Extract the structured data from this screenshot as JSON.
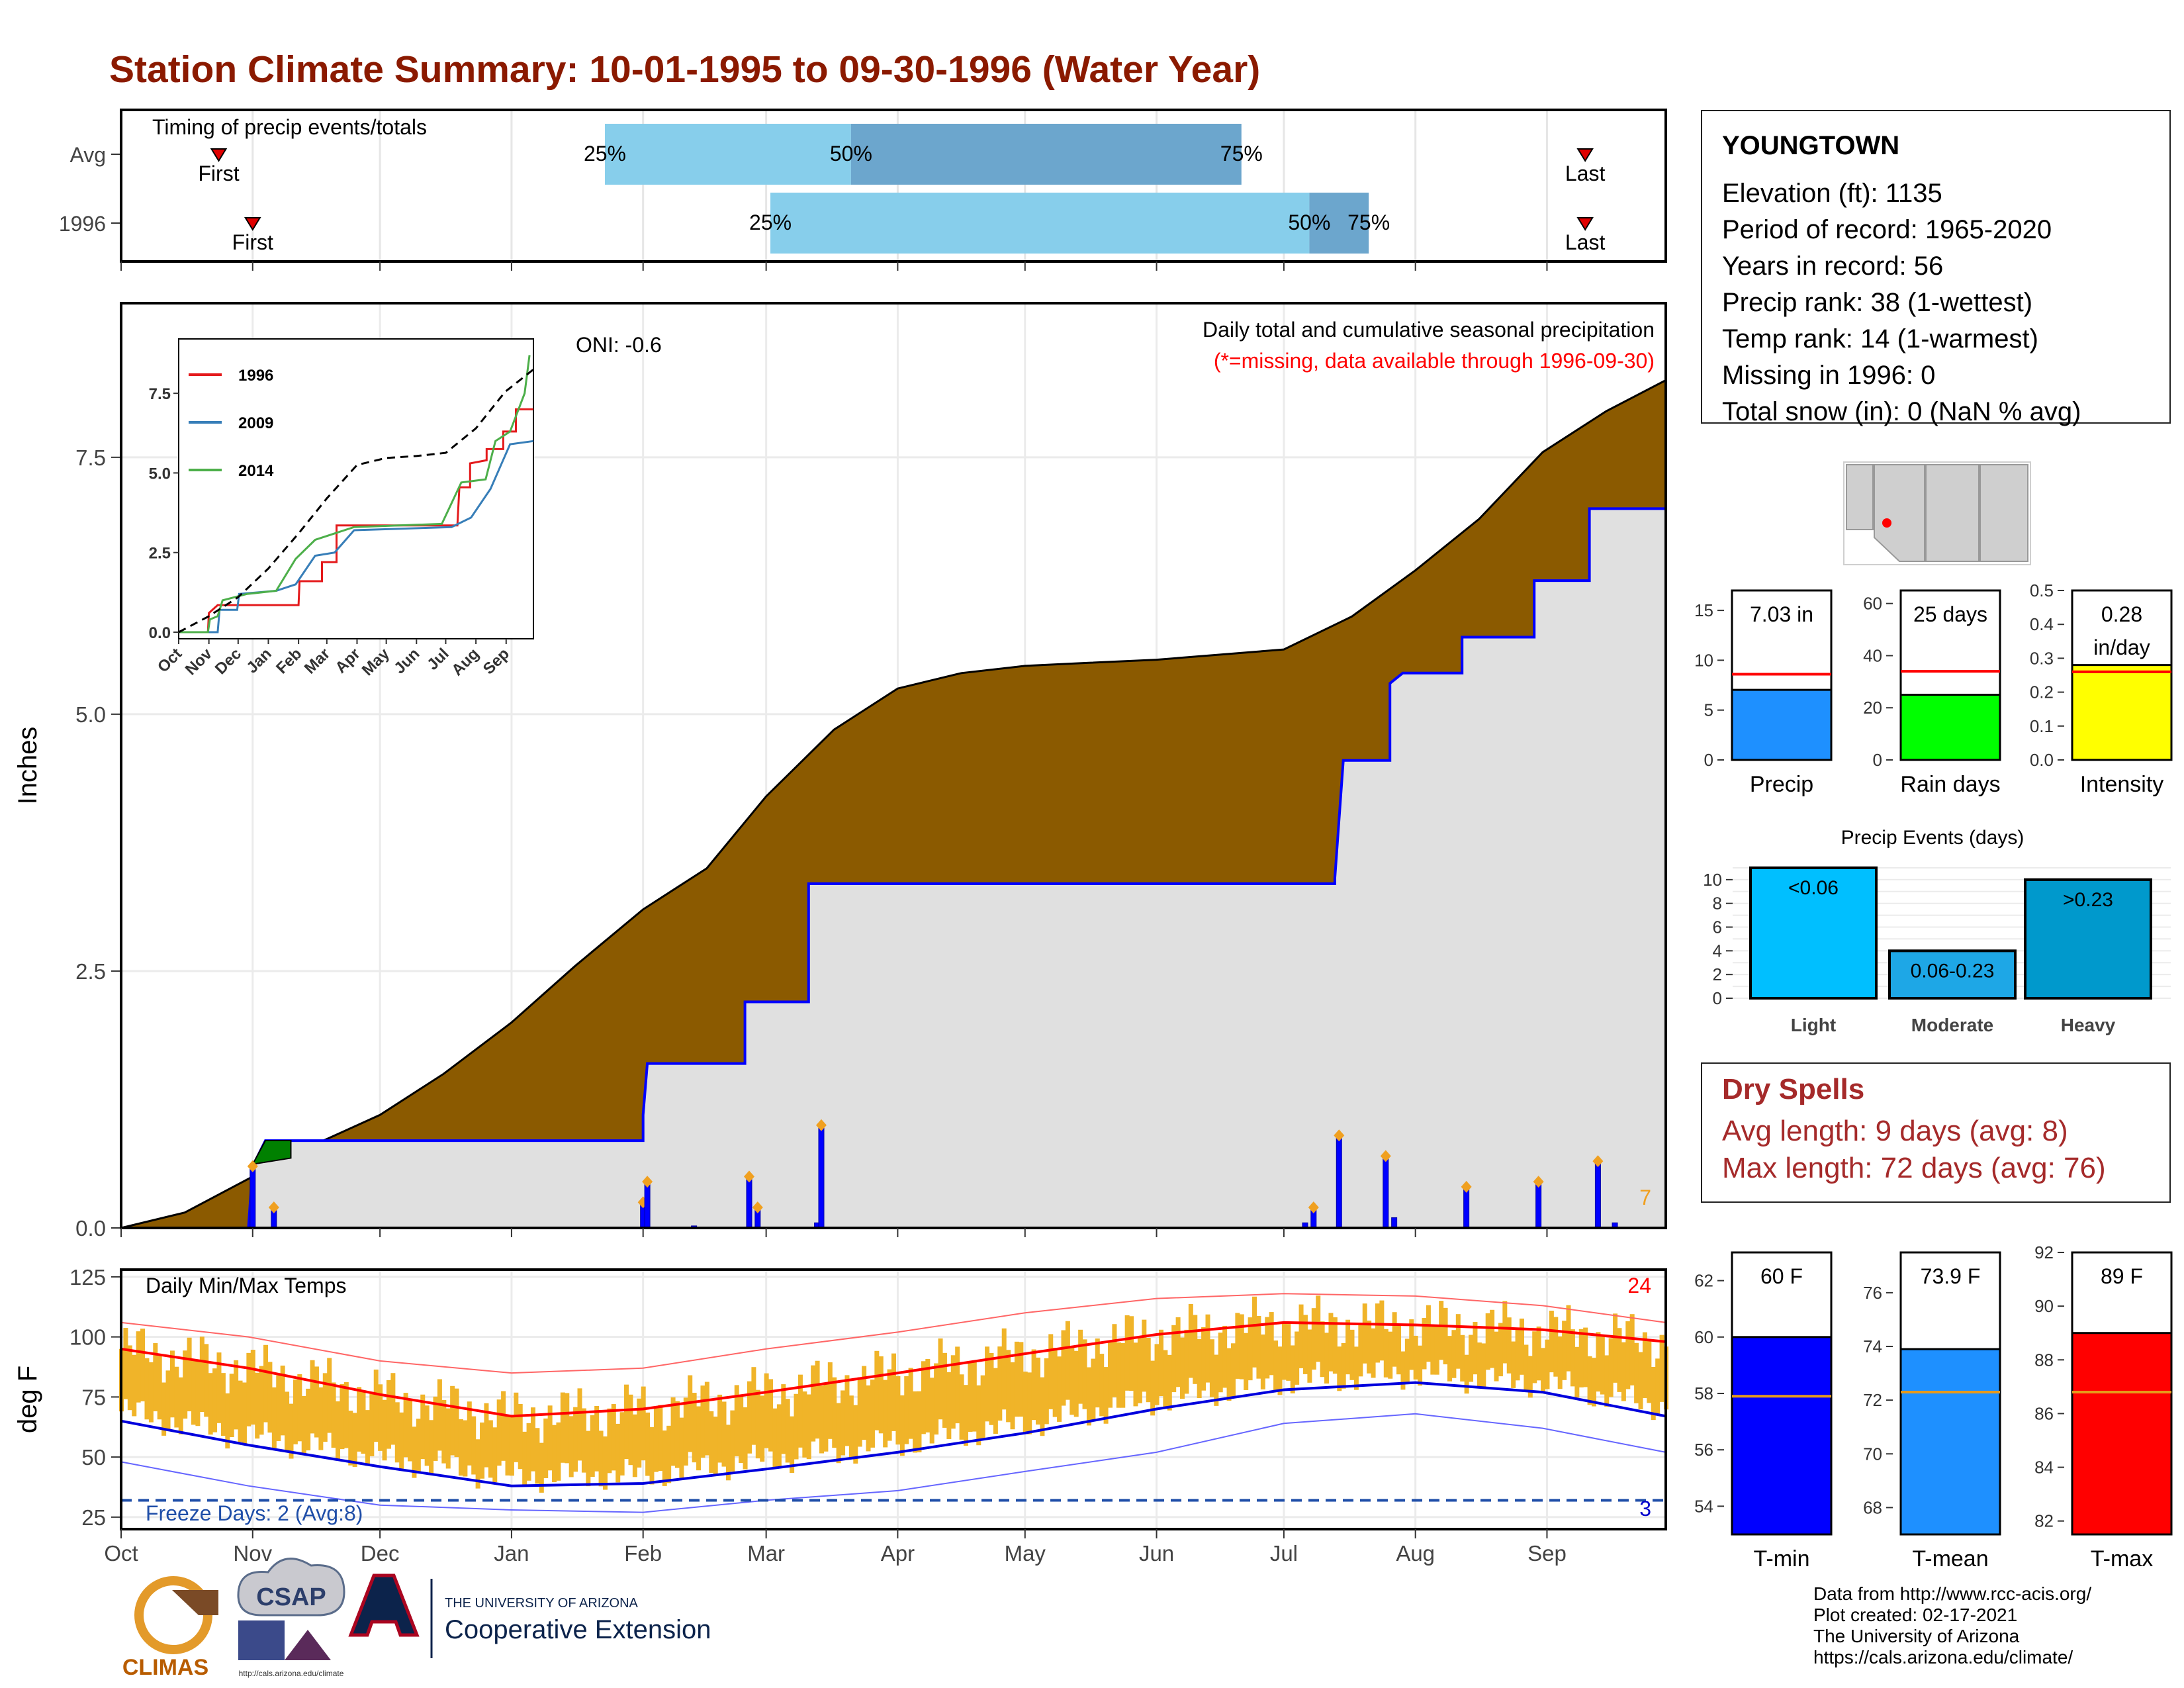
{
  "title": "Station Climate Summary: 10-01-1995 to 09-30-1996 (Water Year)",
  "station": {
    "name": "YOUNGTOWN",
    "lines": [
      "Elevation (ft): 1135",
      "Period of record: 1965-2020",
      "Years in record: 56",
      "Precip rank: 38 (1-wettest)",
      "Temp rank: 14 (1-warmest)",
      "Missing in 1996: 0",
      "Total snow (in): 0 (NaN % avg)"
    ]
  },
  "dry_spells": {
    "heading": "Dry Spells",
    "avg": "Avg length: 9 days (avg: 8)",
    "max": "Max length: 72 days (avg: 76)"
  },
  "credits": [
    "Data from http://www.rcc-acis.org/",
    "Plot created: 02-17-2021",
    "The University of Arizona",
    "https://cals.arizona.edu/climate/"
  ],
  "logos": {
    "climas": "CLIMAS",
    "csap": "CSAP",
    "csap_url": "http://cals.arizona.edu/climate",
    "ua_top": "THE UNIVERSITY OF ARIZONA",
    "ua_main": "Cooperative Extension"
  },
  "months": [
    "Oct",
    "Nov",
    "Dec",
    "Jan",
    "Feb",
    "Mar",
    "Apr",
    "May",
    "Jun",
    "Jul",
    "Aug",
    "Sep"
  ],
  "colors": {
    "brown_fill": "#8b5a00",
    "grey_fill": "#e0e0e0",
    "blue_line": "#0000ff",
    "light_bar": "#87ceeb",
    "dark_bar": "#6ca6cd",
    "gold": "#f0b429",
    "red": "#ff0000",
    "title": "#8b1a00"
  },
  "chart_data": [
    {
      "type": "bar",
      "panel": "timing",
      "title": "Timing of precip events/totals",
      "rows": [
        {
          "label": "Avg",
          "first_day": 23,
          "p25": 114,
          "p50": 172,
          "p75": 264,
          "last_day": 345
        },
        {
          "label": "1996",
          "first_day": 31,
          "p25": 153,
          "p50": 280,
          "p75": 294,
          "last_day": 345
        }
      ],
      "marker_labels": {
        "first": "First",
        "last": "Last",
        "p25": "25%",
        "p50": "50%",
        "p75": "75%"
      }
    },
    {
      "type": "area",
      "panel": "precip",
      "title": "Daily total and cumulative seasonal precipitation",
      "subtitle": "(*=missing, data available through 1996-09-30)",
      "ylabel": "Inches",
      "ylim": [
        0,
        9
      ],
      "yticks": [
        0,
        2.5,
        5,
        7.5
      ],
      "ytick_labels": [
        "0.0",
        "2.5",
        "5.0",
        "7.5"
      ],
      "oni": "ONI: -0.6",
      "corner_count": "7",
      "avg_cumulative": [
        [
          0,
          0
        ],
        [
          15,
          0.15
        ],
        [
          31,
          0.5
        ],
        [
          45,
          0.8
        ],
        [
          61,
          1.1
        ],
        [
          76,
          1.5
        ],
        [
          92,
          2.0
        ],
        [
          107,
          2.55
        ],
        [
          123,
          3.1
        ],
        [
          138,
          3.5
        ],
        [
          152,
          4.2
        ],
        [
          168,
          4.85
        ],
        [
          183,
          5.25
        ],
        [
          198,
          5.4
        ],
        [
          213,
          5.47
        ],
        [
          228,
          5.5
        ],
        [
          244,
          5.53
        ],
        [
          259,
          5.58
        ],
        [
          274,
          5.63
        ],
        [
          290,
          5.95
        ],
        [
          305,
          6.4
        ],
        [
          320,
          6.9
        ],
        [
          335,
          7.55
        ],
        [
          350,
          7.95
        ],
        [
          364,
          8.25
        ]
      ],
      "cumulative_1996": [
        [
          0,
          0
        ],
        [
          30,
          0
        ],
        [
          31,
          0.6
        ],
        [
          34,
          0.85
        ],
        [
          40,
          0.85
        ],
        [
          123,
          0.85
        ],
        [
          123,
          1.1
        ],
        [
          124,
          1.6
        ],
        [
          147,
          1.6
        ],
        [
          147,
          2.2
        ],
        [
          162,
          2.2
        ],
        [
          162,
          3.35
        ],
        [
          242,
          3.35
        ],
        [
          286,
          3.35
        ],
        [
          286,
          3.4
        ],
        [
          288,
          4.55
        ],
        [
          299,
          4.55
        ],
        [
          299,
          5.3
        ],
        [
          302,
          5.4
        ],
        [
          316,
          5.4
        ],
        [
          316,
          5.75
        ],
        [
          333,
          5.75
        ],
        [
          333,
          6.3
        ],
        [
          346,
          6.3
        ],
        [
          346,
          7.0
        ],
        [
          364,
          7.0
        ]
      ],
      "daily_bars": [
        [
          31,
          0.6
        ],
        [
          36,
          0.2
        ],
        [
          123,
          0.25
        ],
        [
          124,
          0.45
        ],
        [
          135,
          0.02
        ],
        [
          148,
          0.5
        ],
        [
          150,
          0.2
        ],
        [
          164,
          0.05
        ],
        [
          165,
          1.0
        ],
        [
          279,
          0.05
        ],
        [
          281,
          0.2
        ],
        [
          287,
          0.9
        ],
        [
          298,
          0.7
        ],
        [
          300,
          0.1
        ],
        [
          317,
          0.4
        ],
        [
          334,
          0.45
        ],
        [
          348,
          0.65
        ],
        [
          352,
          0.05
        ]
      ],
      "inset": {
        "type": "line",
        "yticks": [
          "0.0",
          "2.5",
          "5.0",
          "7.5"
        ],
        "xticks": [
          "Oct",
          "Nov",
          "Dec",
          "Jan",
          "Feb",
          "Mar",
          "Apr",
          "May",
          "Jun",
          "Jul",
          "Aug",
          "Sep"
        ],
        "series": [
          {
            "name": "1996",
            "color": "#e41a1c",
            "values": [
              [
                0,
                0
              ],
              [
                30,
                0
              ],
              [
                31,
                0.6
              ],
              [
                40,
                0.85
              ],
              [
                123,
                0.85
              ],
              [
                124,
                1.6
              ],
              [
                147,
                1.6
              ],
              [
                147,
                2.2
              ],
              [
                162,
                2.2
              ],
              [
                162,
                3.35
              ],
              [
                286,
                3.35
              ],
              [
                288,
                4.55
              ],
              [
                299,
                4.55
              ],
              [
                299,
                5.3
              ],
              [
                316,
                5.4
              ],
              [
                316,
                5.75
              ],
              [
                333,
                5.75
              ],
              [
                333,
                6.3
              ],
              [
                346,
                6.3
              ],
              [
                346,
                7.0
              ],
              [
                364,
                7.0
              ]
            ]
          },
          {
            "name": "2009",
            "color": "#377eb8",
            "values": [
              [
                0,
                0
              ],
              [
                40,
                0
              ],
              [
                42,
                0.7
              ],
              [
                60,
                0.7
              ],
              [
                62,
                1.2
              ],
              [
                100,
                1.3
              ],
              [
                120,
                1.5
              ],
              [
                140,
                2.4
              ],
              [
                160,
                2.5
              ],
              [
                180,
                3.2
              ],
              [
                280,
                3.3
              ],
              [
                300,
                3.6
              ],
              [
                320,
                4.5
              ],
              [
                340,
                5.9
              ],
              [
                364,
                6.0
              ]
            ]
          },
          {
            "name": "2014",
            "color": "#4daf4a",
            "values": [
              [
                0,
                0
              ],
              [
                30,
                0
              ],
              [
                32,
                0.4
              ],
              [
                40,
                0.5
              ],
              [
                45,
                1.0
              ],
              [
                70,
                1.2
              ],
              [
                100,
                1.3
              ],
              [
                120,
                2.3
              ],
              [
                140,
                2.9
              ],
              [
                180,
                3.3
              ],
              [
                270,
                3.4
              ],
              [
                290,
                4.7
              ],
              [
                315,
                4.8
              ],
              [
                325,
                6.0
              ],
              [
                340,
                6.3
              ],
              [
                355,
                7.5
              ],
              [
                360,
                8.7
              ]
            ]
          },
          {
            "name": "",
            "color": "#000000",
            "dashed": true,
            "values": [
              [
                0,
                0
              ],
              [
                31,
                0.5
              ],
              [
                61,
                1.1
              ],
              [
                92,
                2.0
              ],
              [
                123,
                3.1
              ],
              [
                152,
                4.2
              ],
              [
                183,
                5.25
              ],
              [
                213,
                5.47
              ],
              [
                244,
                5.53
              ],
              [
                274,
                5.63
              ],
              [
                305,
                6.4
              ],
              [
                335,
                7.55
              ],
              [
                364,
                8.25
              ]
            ]
          }
        ]
      }
    },
    {
      "type": "line",
      "panel": "temps",
      "title": "Daily Min/Max Temps",
      "ylabel": "deg F",
      "ylim": [
        20,
        128
      ],
      "yticks": [
        25,
        50,
        75,
        100,
        125
      ],
      "freeze_label": "Freeze Days: 2 (Avg:8)",
      "freeze_line": 32,
      "max_count": "24",
      "min_count": "3",
      "avg_max": [
        [
          0,
          95
        ],
        [
          30,
          87
        ],
        [
          61,
          76
        ],
        [
          92,
          67
        ],
        [
          123,
          70
        ],
        [
          152,
          77
        ],
        [
          183,
          85
        ],
        [
          213,
          93
        ],
        [
          244,
          101
        ],
        [
          274,
          106
        ],
        [
          305,
          105
        ],
        [
          335,
          103
        ],
        [
          364,
          98
        ]
      ],
      "avg_min": [
        [
          0,
          65
        ],
        [
          30,
          55
        ],
        [
          61,
          46
        ],
        [
          92,
          38
        ],
        [
          123,
          39
        ],
        [
          152,
          45
        ],
        [
          183,
          52
        ],
        [
          213,
          60
        ],
        [
          244,
          70
        ],
        [
          274,
          78
        ],
        [
          305,
          81
        ],
        [
          335,
          77
        ],
        [
          364,
          67
        ]
      ],
      "record_max": [
        [
          0,
          106
        ],
        [
          30,
          100
        ],
        [
          61,
          90
        ],
        [
          92,
          85
        ],
        [
          123,
          87
        ],
        [
          152,
          95
        ],
        [
          183,
          102
        ],
        [
          213,
          110
        ],
        [
          244,
          116
        ],
        [
          274,
          118
        ],
        [
          305,
          117
        ],
        [
          335,
          113
        ],
        [
          364,
          106
        ]
      ],
      "record_min": [
        [
          0,
          48
        ],
        [
          30,
          38
        ],
        [
          61,
          30
        ],
        [
          92,
          28
        ],
        [
          123,
          27
        ],
        [
          152,
          32
        ],
        [
          183,
          36
        ],
        [
          213,
          44
        ],
        [
          244,
          52
        ],
        [
          274,
          64
        ],
        [
          305,
          68
        ],
        [
          335,
          62
        ],
        [
          364,
          52
        ]
      ]
    },
    {
      "type": "bar",
      "panel": "totals",
      "categories": [
        "Precip",
        "Rain days",
        "Intensity"
      ],
      "labels": [
        "7.03 in",
        "25 days",
        "0.28 in/day"
      ],
      "values": [
        7.03,
        25,
        0.28
      ],
      "averages": [
        8.6,
        34,
        0.26
      ],
      "ylims": [
        [
          0,
          17
        ],
        [
          0,
          65
        ],
        [
          0,
          0.5
        ]
      ],
      "yticks": [
        [
          "0",
          "5",
          "10",
          "15"
        ],
        [
          "0",
          "20",
          "40",
          "60"
        ],
        [
          "0.0",
          "0.1",
          "0.2",
          "0.3",
          "0.4",
          "0.5"
        ]
      ],
      "colors": [
        "#1e90ff",
        "#00ff00",
        "#ffff00"
      ]
    },
    {
      "type": "bar",
      "panel": "events",
      "title": "Precip Events (days)",
      "categories": [
        "Light",
        "Moderate",
        "Heavy"
      ],
      "labels": [
        "<0.06",
        "0.06-0.23",
        ">0.23"
      ],
      "values": [
        11,
        4,
        10
      ],
      "ylim": [
        0,
        11.5
      ],
      "yticks": [
        "0",
        "2",
        "4",
        "6",
        "8",
        "10"
      ],
      "colors": [
        "#00bfff",
        "#1ea7e6",
        "#0099cc"
      ]
    },
    {
      "type": "bar",
      "panel": "temp_summary",
      "categories": [
        "T-min",
        "T-mean",
        "T-max"
      ],
      "labels": [
        "60 F",
        "73.9 F",
        "89 F"
      ],
      "values": [
        60,
        73.9,
        89
      ],
      "averages": [
        57.9,
        72.3,
        86.8
      ],
      "ylims": [
        [
          53,
          63
        ],
        [
          67,
          77.5
        ],
        [
          81.5,
          92
        ]
      ],
      "yticks": [
        [
          "54",
          "56",
          "58",
          "60",
          "62"
        ],
        [
          "68",
          "70",
          "72",
          "74",
          "76"
        ],
        [
          "82",
          "84",
          "86",
          "88",
          "90",
          "92"
        ]
      ],
      "colors": [
        "#0000ff",
        "#1e90ff",
        "#ff0000"
      ]
    }
  ]
}
